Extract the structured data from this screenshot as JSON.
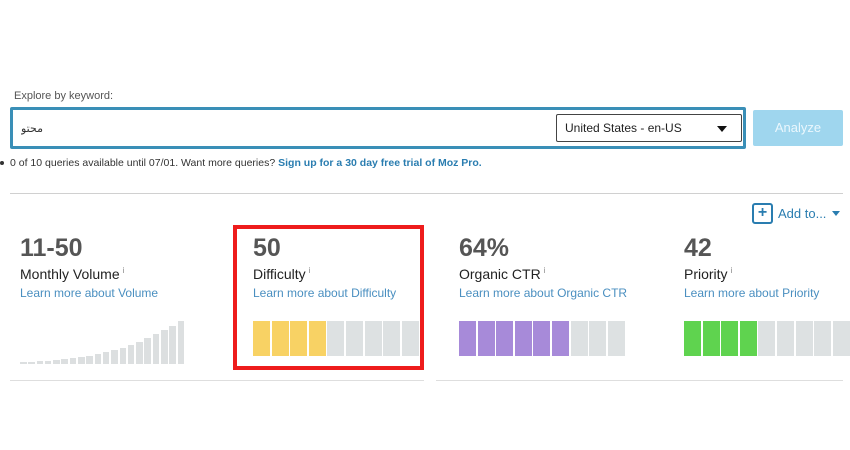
{
  "search": {
    "label": "Explore by keyword:",
    "value": "محتو",
    "locale": "United States - en-US",
    "analyze_label": "Analyze"
  },
  "quota": {
    "text": "0 of 10 queries available until 07/01. Want more queries?",
    "link": "Sign up for a 30 day free trial of Moz Pro."
  },
  "add_to": {
    "label": "Add to..."
  },
  "metrics": [
    {
      "value": "11-50",
      "name": "Monthly Volume",
      "info": "i",
      "learn": "Learn more about Volume"
    },
    {
      "value": "50",
      "name": "Difficulty",
      "info": "i",
      "learn": "Learn more about Difficulty",
      "filled": 4,
      "segments": 9,
      "color": "#f8d264"
    },
    {
      "value": "64%",
      "name": "Organic CTR",
      "info": "i",
      "learn": "Learn more about Organic CTR",
      "filled": 6,
      "segments": 9,
      "color": "#a78ad9"
    },
    {
      "value": "42",
      "name": "Priority",
      "info": "i",
      "learn": "Learn more about Priority",
      "filled": 4,
      "segments": 9,
      "color": "#5fd34f"
    }
  ],
  "volume_trend": [
    2,
    2,
    3,
    3,
    4,
    5,
    6,
    7,
    8,
    10,
    12,
    14,
    16,
    19,
    22,
    26,
    30,
    34,
    38,
    43
  ],
  "colors": {
    "accent": "#2a7db0",
    "empty_segment": "#dde1e2",
    "highlight": "#ee1c1c"
  }
}
